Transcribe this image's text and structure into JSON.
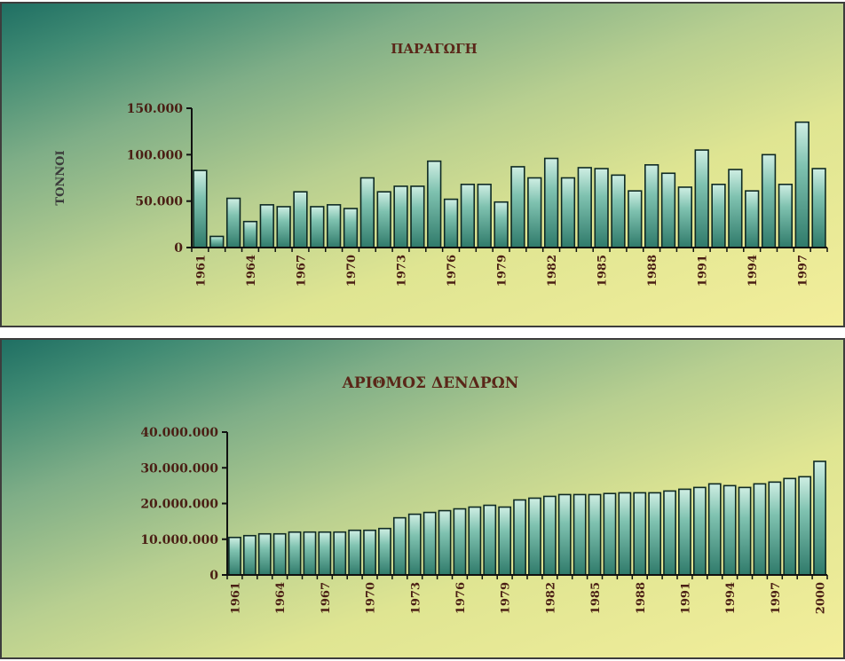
{
  "chart_data": [
    {
      "type": "bar",
      "title": "ΠΑΡΑΓΩΓΗ",
      "ylabel": "ΤΟΝΝΟΙ",
      "xlabel": "",
      "ylim": [
        0,
        150000
      ],
      "yticks": [
        0,
        50000,
        100000,
        150000
      ],
      "ytick_labels": [
        "0",
        "50.000",
        "100.000",
        "150.000"
      ],
      "categories": [
        1961,
        1962,
        1963,
        1964,
        1965,
        1966,
        1967,
        1968,
        1969,
        1970,
        1971,
        1972,
        1973,
        1974,
        1975,
        1976,
        1977,
        1978,
        1979,
        1980,
        1981,
        1982,
        1983,
        1984,
        1985,
        1986,
        1987,
        1988,
        1989,
        1990,
        1991,
        1992,
        1993,
        1994,
        1995,
        1996,
        1997,
        1998
      ],
      "xtick_labels": [
        "1961",
        "1964",
        "1967",
        "1970",
        "1973",
        "1976",
        "1979",
        "1982",
        "1985",
        "1988",
        "1991",
        "1994",
        "1997"
      ],
      "values": [
        83000,
        12000,
        53000,
        28000,
        46000,
        44000,
        60000,
        44000,
        46000,
        42000,
        75000,
        60000,
        66000,
        66000,
        93000,
        52000,
        68000,
        68000,
        49000,
        87000,
        75000,
        96000,
        75000,
        86000,
        85000,
        78000,
        61000,
        89000,
        80000,
        65000,
        105000,
        68000,
        84000,
        61000,
        100000,
        68000,
        135000,
        85000
      ],
      "grid": false,
      "bar_color": "#4f9c8b"
    },
    {
      "type": "bar",
      "title": "ΑΡΙΘΜΟΣ ΔΕΝΔΡΩΝ",
      "ylabel": "",
      "xlabel": "",
      "ylim": [
        0,
        40000000
      ],
      "yticks": [
        0,
        10000000,
        20000000,
        30000000,
        40000000
      ],
      "ytick_labels": [
        "0",
        "10.000.000",
        "20.000.000",
        "30.000.000",
        "40.000.000"
      ],
      "categories": [
        1961,
        1962,
        1963,
        1964,
        1965,
        1966,
        1967,
        1968,
        1969,
        1970,
        1971,
        1972,
        1973,
        1974,
        1975,
        1976,
        1977,
        1978,
        1979,
        1980,
        1981,
        1982,
        1983,
        1984,
        1985,
        1986,
        1987,
        1988,
        1989,
        1990,
        1991,
        1992,
        1993,
        1994,
        1995,
        1996,
        1997,
        1998,
        1999,
        2000
      ],
      "xtick_labels": [
        "1961",
        "1964",
        "1967",
        "1970",
        "1973",
        "1976",
        "1979",
        "1982",
        "1985",
        "1988",
        "1991",
        "1994",
        "1997",
        "2000"
      ],
      "values": [
        10500000,
        11000000,
        11500000,
        11500000,
        12000000,
        12000000,
        12000000,
        12000000,
        12500000,
        12500000,
        13000000,
        16000000,
        17000000,
        17500000,
        18000000,
        18500000,
        19000000,
        19500000,
        19000000,
        21000000,
        21500000,
        22000000,
        22500000,
        22500000,
        22500000,
        22800000,
        23000000,
        23000000,
        23000000,
        23500000,
        24000000,
        24500000,
        25500000,
        25000000,
        24500000,
        25500000,
        26000000,
        27000000,
        27500000,
        31800000
      ],
      "grid": false,
      "bar_color": "#4f9c8b"
    }
  ]
}
